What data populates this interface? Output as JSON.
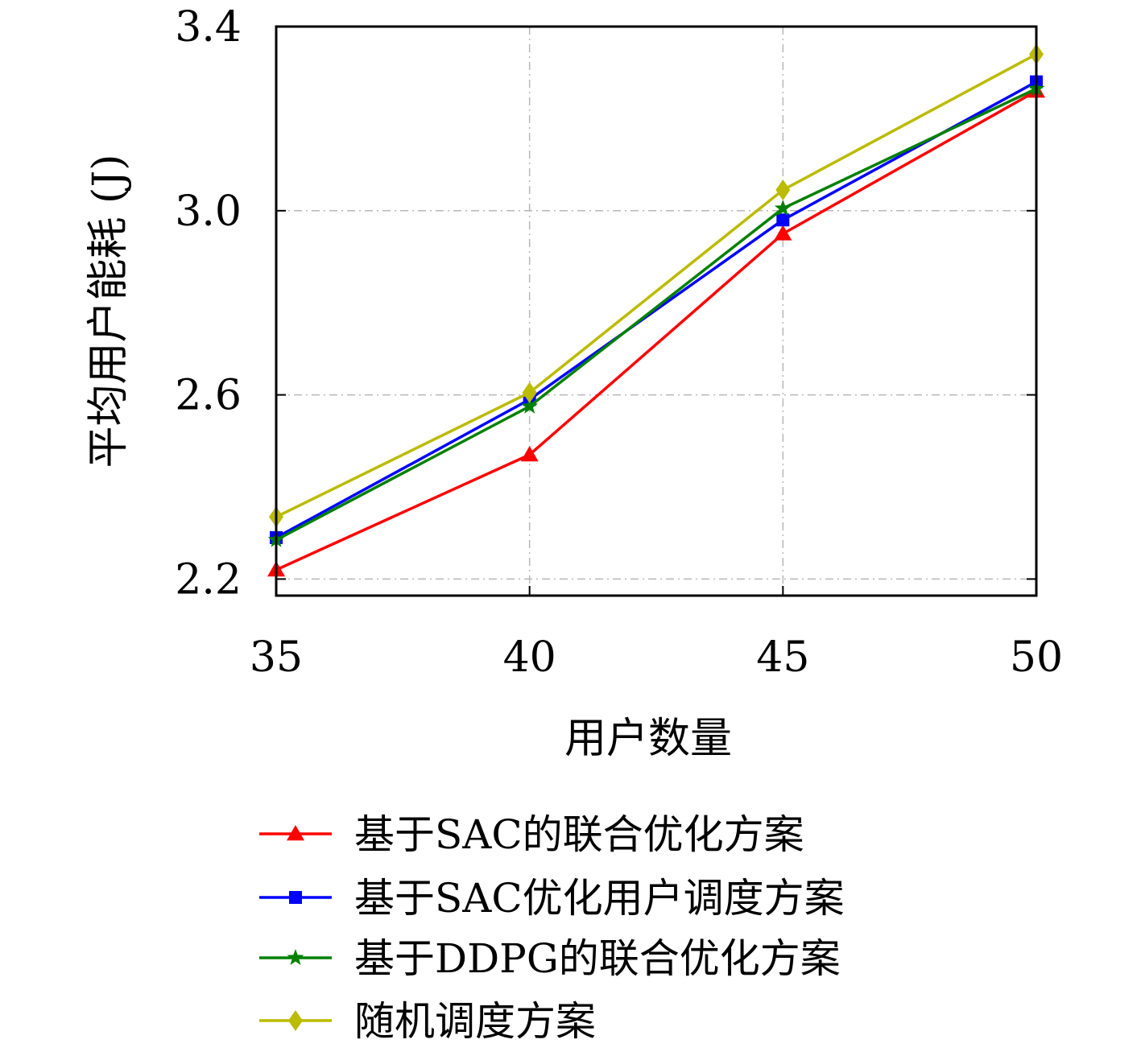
{
  "chart_data": {
    "type": "line",
    "title": "",
    "xlabel": "用户数量",
    "ylabel": "平均用户能耗 (J)",
    "x": [
      35,
      40,
      45,
      50
    ],
    "x_ticks": [
      "35",
      "40",
      "45",
      "50"
    ],
    "xlim": [
      35,
      50
    ],
    "y_ticks": [
      "2.2",
      "2.6",
      "3.0",
      "3.4"
    ],
    "ylim": [
      2.164,
      3.4
    ],
    "grid": true,
    "legend_position": "bottom",
    "series": [
      {
        "name": "基于SAC的联合优化方案",
        "color": "#ff0000",
        "marker": "triangle",
        "values": [
          2.22,
          2.47,
          2.95,
          3.26
        ]
      },
      {
        "name": "基于SAC优化用户调度方案",
        "color": "#0000ff",
        "marker": "square",
        "values": [
          2.29,
          2.59,
          2.98,
          3.28
        ]
      },
      {
        "name": "基于DDPG的联合优化方案",
        "color": "#008000",
        "marker": "star",
        "values": [
          2.285,
          2.575,
          3.005,
          3.265
        ]
      },
      {
        "name": "随机调度方案",
        "color": "#bbbb00",
        "marker": "diamond",
        "values": [
          2.335,
          2.605,
          3.045,
          3.34
        ]
      }
    ]
  }
}
